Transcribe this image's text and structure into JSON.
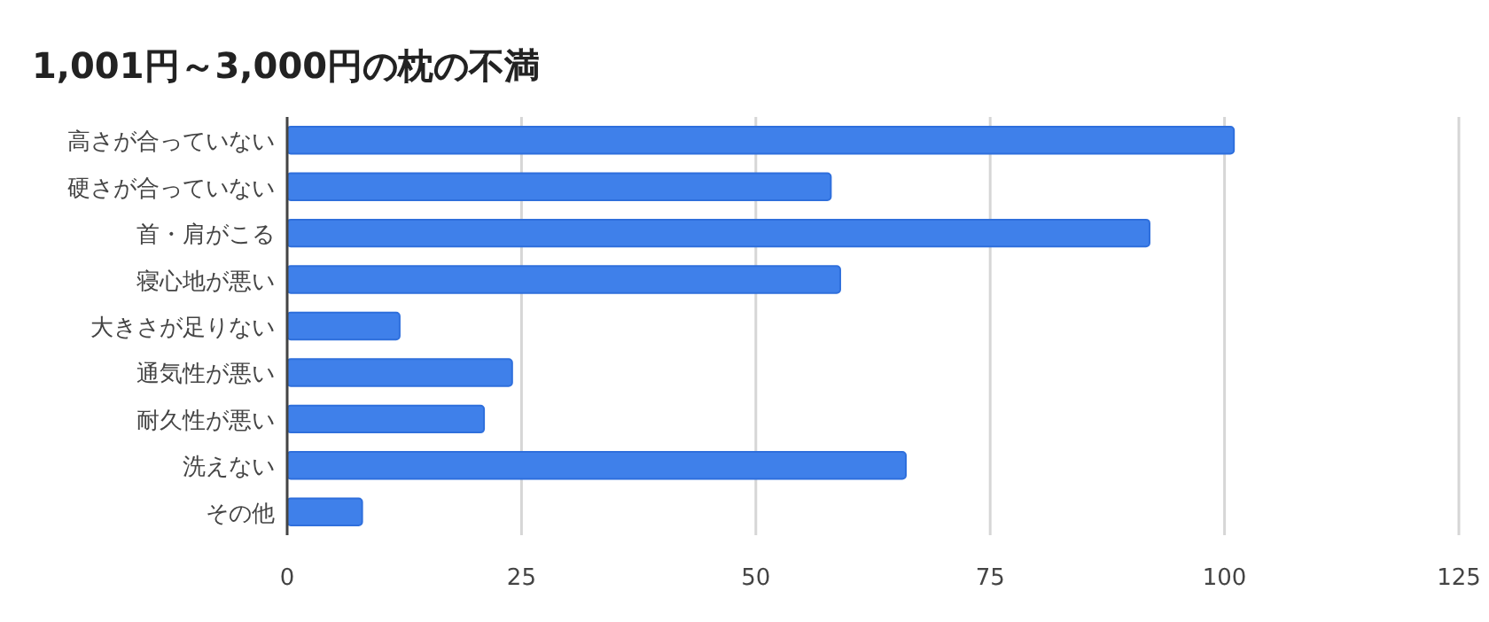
{
  "chart_data": {
    "type": "bar",
    "orientation": "horizontal",
    "title": "1,001円～3,000円の枕の不満",
    "categories": [
      "高さが合っていない",
      "硬さが合っていない",
      "首・肩がこる",
      "寝心地が悪い",
      "大きさが足りない",
      "通気性が悪い",
      "耐久性が悪い",
      "洗えない",
      "その他"
    ],
    "values": [
      101,
      58,
      92,
      59,
      12,
      24,
      21,
      66,
      8
    ],
    "color": "#3f80ea",
    "xlim": [
      0,
      125
    ],
    "xticks": [
      0,
      25,
      50,
      75,
      100,
      125
    ],
    "grid": "x"
  }
}
